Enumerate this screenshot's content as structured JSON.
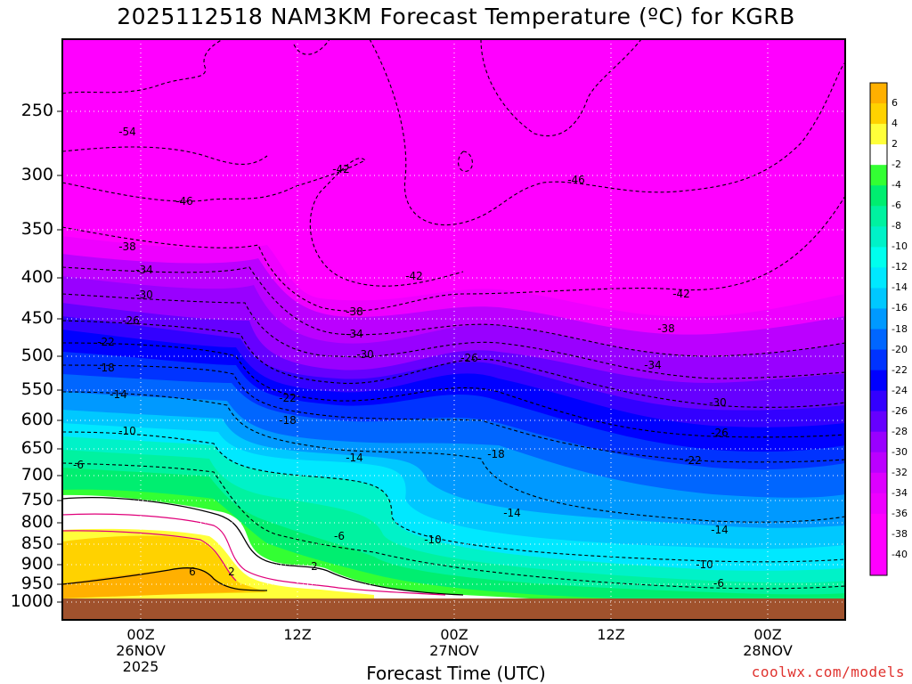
{
  "chart_data": {
    "type": "heatmap",
    "title": "2025112518 NAM3KM Forecast Temperature (ºC) for KGRB",
    "xlabel": "Forecast Time (UTC)",
    "ylabel": "",
    "y_scale": "pressure (hPa), inverted",
    "ylim": [
      1000,
      200
    ],
    "y_ticks": [
      250,
      300,
      350,
      400,
      450,
      500,
      550,
      600,
      650,
      700,
      750,
      800,
      850,
      900,
      950,
      1000
    ],
    "x_ticks": [
      {
        "label": "00Z\n26NOV\n2025"
      },
      {
        "label": "12Z"
      },
      {
        "label": "00Z\n27NOV"
      },
      {
        "label": "12Z"
      },
      {
        "label": "00Z\n28NOV"
      }
    ],
    "grid": true,
    "colorbar": {
      "position": "right",
      "ticks": [
        6,
        4,
        2,
        -2,
        -4,
        -6,
        -8,
        -10,
        -12,
        -14,
        -16,
        -18,
        -20,
        -22,
        -24,
        -26,
        -28,
        -30,
        -32,
        -34,
        -36,
        -38,
        -40
      ],
      "colors": {
        "6": "#ffb000",
        "4": "#ffd200",
        "2": "#ffff3a",
        "0": "#ffffff",
        "-2": "#33ff33",
        "-4": "#00ee70",
        "-6": "#00f2a0",
        "-8": "#00f2c8",
        "-10": "#00ffee",
        "-12": "#00e8ff",
        "-14": "#00c8ff",
        "-16": "#0099ff",
        "-18": "#0066ff",
        "-20": "#0033ff",
        "-22": "#0000ff",
        "-24": "#3300ff",
        "-26": "#6600ff",
        "-28": "#9900ff",
        "-30": "#bb00ff",
        "-32": "#dd00ff",
        "-34": "#ee00ff",
        "-36": "#ff00ff",
        "-38": "#ff00ff",
        "-40": "#ff00ff"
      }
    },
    "contour_labels": [
      "-54",
      "-46",
      "-42",
      "-46",
      "-42",
      "-42",
      "-38",
      "-38",
      "-38",
      "-34",
      "-34",
      "-34",
      "-30",
      "-30",
      "-30",
      "-26",
      "-26",
      "-26",
      "-22",
      "-22",
      "-22",
      "-18",
      "-18",
      "-18",
      "-14",
      "-14",
      "-14",
      "-14",
      "-10",
      "-10",
      "-10",
      "-6",
      "-6",
      "-6",
      "6",
      "2",
      "2"
    ],
    "ground_color": "#a0522d"
  },
  "credit": "coolwx.com/models"
}
